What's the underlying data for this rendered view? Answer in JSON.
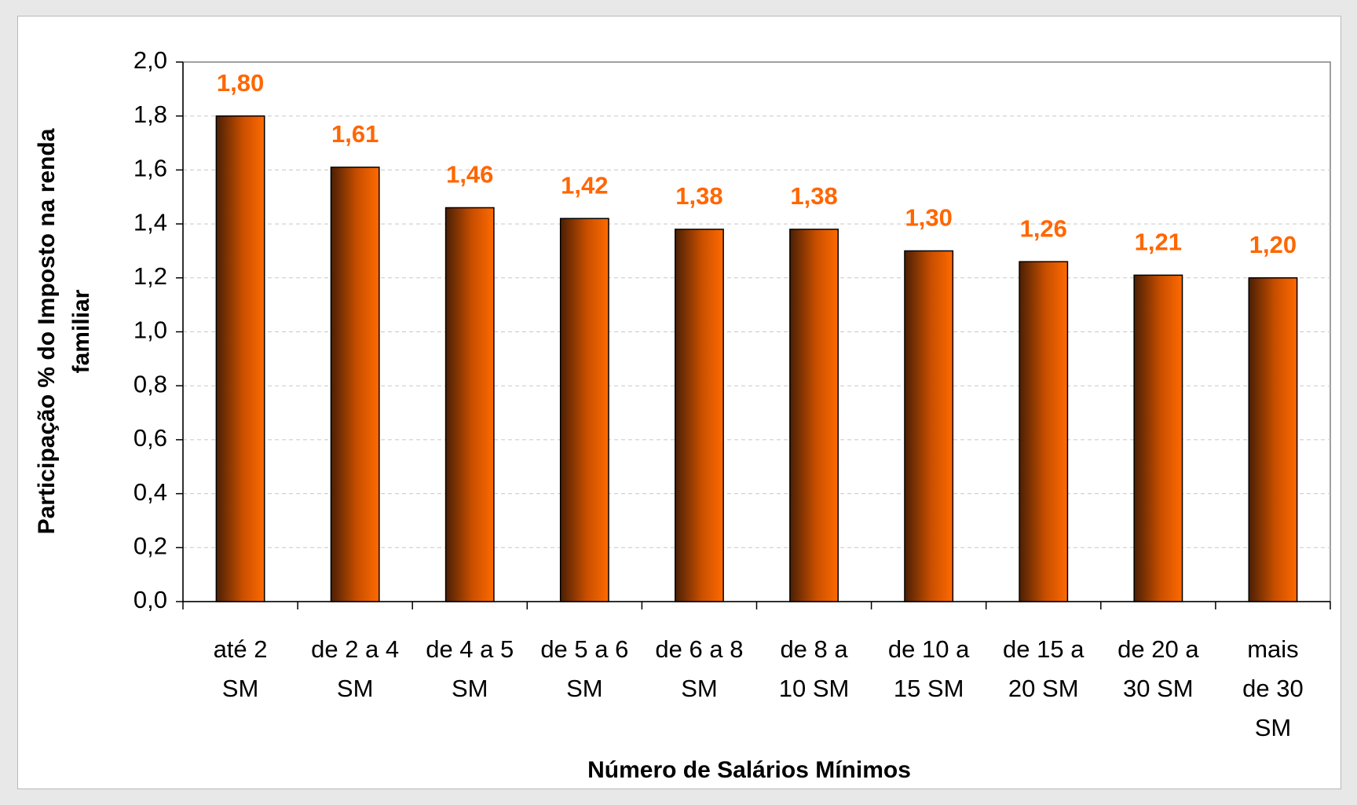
{
  "chart_data": {
    "type": "bar",
    "x_label": "Número de Salários Mínimos",
    "y_label": "Participação % do Imposto na renda\nfamiliar",
    "categories": [
      "até 2\nSM",
      "de 2 a 4\nSM",
      "de 4 a 5\nSM",
      "de 5 a 6\nSM",
      "de 6 a 8\nSM",
      "de 8 a\n10 SM",
      "de 10 a\n15 SM",
      "de 15 a\n20 SM",
      "de 20 a\n30 SM",
      "mais\nde 30\nSM"
    ],
    "values": [
      1.8,
      1.61,
      1.46,
      1.42,
      1.38,
      1.38,
      1.3,
      1.26,
      1.21,
      1.2
    ],
    "value_labels": [
      "1,80",
      "1,61",
      "1,46",
      "1,42",
      "1,38",
      "1,38",
      "1,30",
      "1,26",
      "1,21",
      "1,20"
    ],
    "color": "#ff6600",
    "ylim": [
      0,
      2
    ],
    "yticks": [
      {
        "value": 0,
        "label": "0,0"
      },
      {
        "value": 0.2,
        "label": "0,2"
      },
      {
        "value": 0.4,
        "label": "0,4"
      },
      {
        "value": 0.6,
        "label": "0,6"
      },
      {
        "value": 0.8,
        "label": "0,8"
      },
      {
        "value": 1.0,
        "label": "1,0"
      },
      {
        "value": 1.2,
        "label": "1,2"
      },
      {
        "value": 1.4,
        "label": "1,4"
      },
      {
        "value": 1.6,
        "label": "1,6"
      },
      {
        "value": 1.8,
        "label": "1,8"
      },
      {
        "value": 2.0,
        "label": "2,0"
      }
    ],
    "grid": true
  }
}
